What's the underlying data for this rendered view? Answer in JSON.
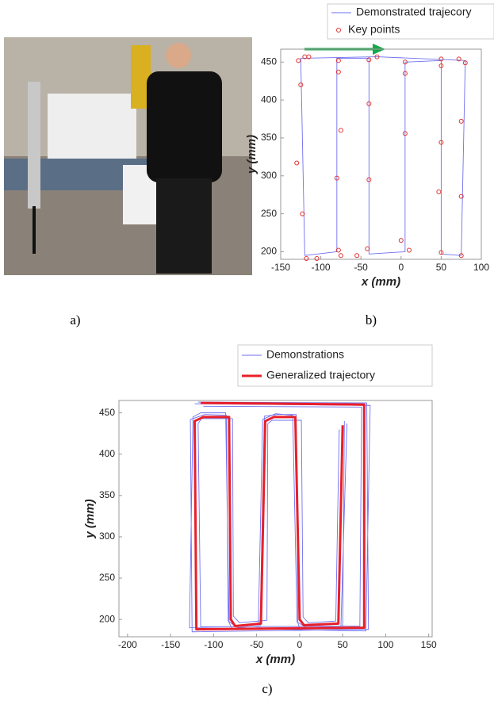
{
  "captions": {
    "a": "a)",
    "b": "b)",
    "c": "c)"
  },
  "chart_data": [
    {
      "type": "line",
      "x_label": "x (mm)",
      "y_label": "y (mm)",
      "xlim": [
        -150,
        100
      ],
      "xticks": [
        -150,
        -100,
        -50,
        0,
        50,
        100
      ],
      "ylim": [
        190,
        467
      ],
      "yticks": [
        200,
        250,
        300,
        350,
        400,
        450
      ],
      "series": [
        {
          "name": "Demonstrated trajecory",
          "color": "#6f6ff0",
          "mode": "line",
          "x": [
            -125,
            -30,
            80,
            75,
            50,
            50,
            5,
            5,
            -40,
            -40,
            -80,
            -80,
            -120,
            -125
          ],
          "y": [
            455,
            457,
            452,
            195,
            197,
            452,
            450,
            200,
            197,
            455,
            455,
            200,
            195,
            455
          ]
        },
        {
          "name": "Key points",
          "color": "#e03030",
          "mode": "markers",
          "x": [
            -128,
            -120,
            -115,
            -78,
            -78,
            -30,
            -40,
            5,
            50,
            72,
            80,
            50,
            75,
            50,
            75,
            47,
            50,
            75,
            5,
            5,
            -40,
            -40,
            -75,
            -80,
            -125,
            -130,
            -123,
            -118,
            -105,
            -78,
            -75,
            -42,
            -55,
            0,
            10
          ],
          "y": [
            452,
            457,
            457,
            452,
            437,
            457,
            453,
            450,
            454,
            454,
            449,
            445,
            372,
            344,
            273,
            279,
            199,
            195,
            435,
            356,
            395,
            295,
            360,
            297,
            420,
            317,
            250,
            191,
            191,
            202,
            195,
            204,
            195,
            215,
            202
          ]
        }
      ]
    },
    {
      "type": "line",
      "x_label": "x (mm)",
      "y_label": "y (mm)",
      "xlim": [
        -210,
        154
      ],
      "xticks": [
        -200,
        -150,
        -100,
        -50,
        0,
        50,
        100,
        150
      ],
      "ylim": [
        179,
        465
      ],
      "yticks": [
        200,
        250,
        300,
        350,
        400,
        450
      ],
      "series": [
        {
          "name": "Demonstrations",
          "color": "#6f6ff0",
          "mode": "line",
          "x": [
            -118,
            78,
            80,
            -125,
            -127,
            -110,
            -85,
            -83,
            -72,
            -48,
            -43,
            -28,
            -8,
            -3,
            8,
            48,
            55,
            null,
            -112,
            72,
            70,
            -115,
            -118,
            -114,
            -78,
            -77,
            -70,
            -38,
            -37,
            -32,
            2,
            4,
            10,
            42,
            46,
            null,
            -122,
            82,
            77,
            -128,
            -124,
            -115,
            -86,
            -82,
            -78,
            -46,
            -41,
            -25,
            -4,
            -2,
            0,
            50,
            52
          ],
          "y": [
            463,
            462,
            188,
            185,
            442,
            448,
            447,
            198,
            190,
            192,
            442,
            449,
            447,
            197,
            190,
            192,
            437,
            null,
            458,
            457,
            192,
            191,
            437,
            443,
            443,
            204,
            196,
            199,
            437,
            441,
            441,
            203,
            196,
            198,
            430,
            null,
            461,
            459,
            186,
            190,
            445,
            450,
            450,
            196,
            188,
            190,
            446,
            448,
            448,
            196,
            189,
            192,
            440
          ]
        },
        {
          "name": "Generalized trajectory",
          "color": "#e8202a",
          "mode": "thick",
          "x": [
            -115,
            75,
            75,
            -120,
            -122,
            -112,
            -82,
            -80,
            -75,
            -45,
            -40,
            -30,
            -5,
            0,
            5,
            45,
            50
          ],
          "y": [
            462,
            460,
            190,
            188,
            440,
            445,
            445,
            200,
            192,
            195,
            440,
            445,
            445,
            200,
            193,
            195,
            435
          ]
        }
      ]
    }
  ]
}
